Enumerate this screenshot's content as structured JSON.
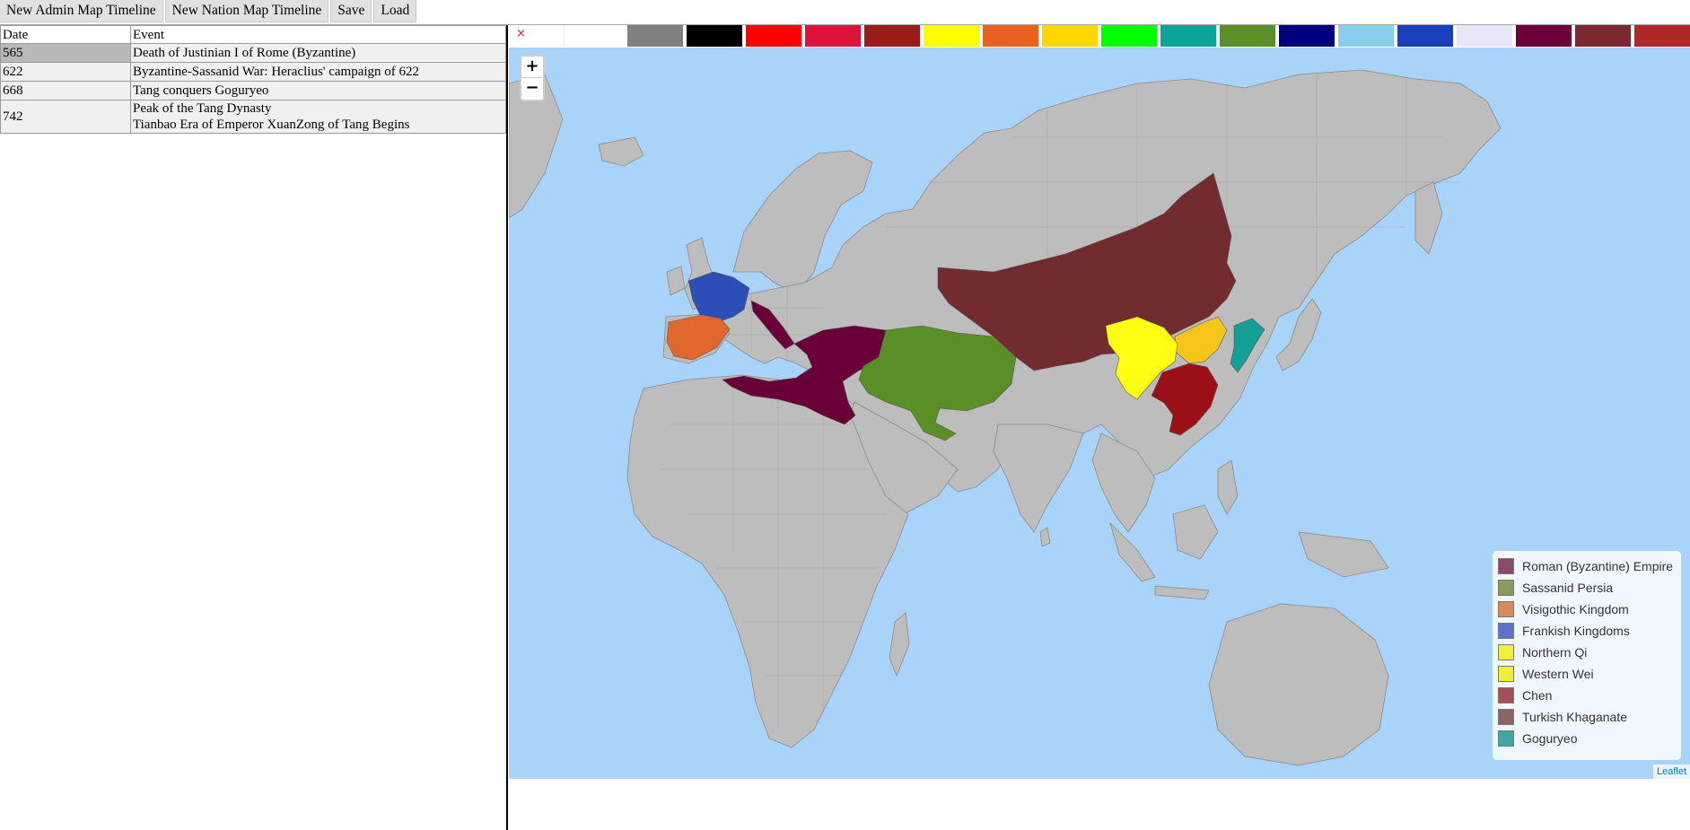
{
  "toolbar": {
    "buttons": [
      "New Admin Map Timeline",
      "New Nation Map Timeline",
      "Save",
      "Load"
    ]
  },
  "events_table": {
    "headers": [
      "Date",
      "Event"
    ],
    "rows": [
      {
        "date": "565",
        "event": [
          "Death of Justinian I of Rome (Byzantine)"
        ]
      },
      {
        "date": "622",
        "event": [
          "Byzantine-Sassanid War: Heraclius' campaign of 622"
        ]
      },
      {
        "date": "668",
        "event": [
          "Tang conquers Goguryeo"
        ]
      },
      {
        "date": "742",
        "event": [
          "Peak of the Tang Dynasty",
          "Tianbao Era of Emperor XuanZong of Tang Begins"
        ]
      }
    ]
  },
  "palette": {
    "clear_glyph": "×",
    "colors": [
      "#ffffff",
      "#808080",
      "#000000",
      "#ff0000",
      "#dc143c",
      "#9b1b1b",
      "#ffff00",
      "#e8621f",
      "#ffd700",
      "#00ff00",
      "#0aa596",
      "#5a8f27",
      "#000080",
      "#87ceeb",
      "#1c3fbd",
      "#e8e6f8",
      "#6b0038",
      "#7a2a2e",
      "#b02828"
    ]
  },
  "map": {
    "zoom_in": "+",
    "zoom_out": "−",
    "attribution": "Leaflet",
    "ocean_color": "#aad3f9",
    "land_color": "#bdbdbd"
  },
  "legend": [
    {
      "label": "Roman (Byzantine) Empire",
      "color": "#8c4a6b"
    },
    {
      "label": "Sassanid Persia",
      "color": "#869b5e"
    },
    {
      "label": "Visigothic Kingdom",
      "color": "#d78b5c"
    },
    {
      "label": "Frankish Kingdoms",
      "color": "#5b73c8"
    },
    {
      "label": "Northern Qi",
      "color": "#f2ef3c"
    },
    {
      "label": "Western Wei",
      "color": "#f2ef3c"
    },
    {
      "label": "Chen",
      "color": "#a55056"
    },
    {
      "label": "Turkish Khaganate",
      "color": "#8b6565"
    },
    {
      "label": "Goguryeo",
      "color": "#3fa6a6"
    }
  ]
}
